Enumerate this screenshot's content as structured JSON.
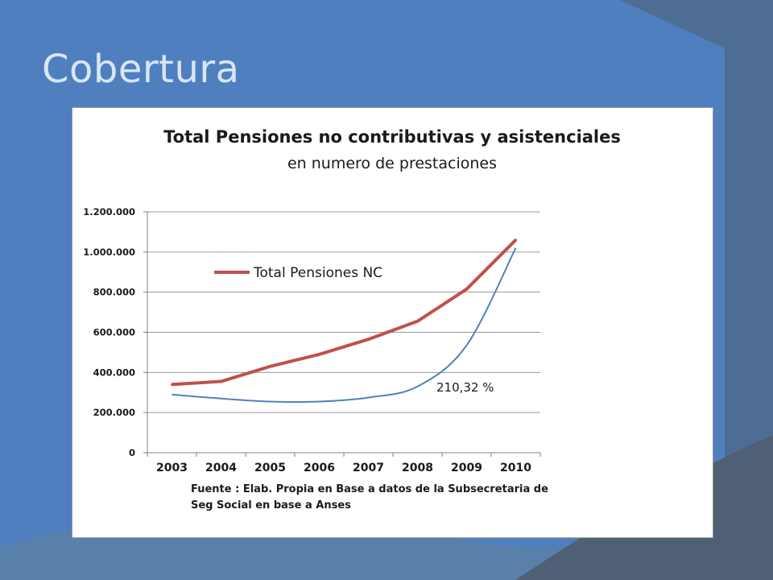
{
  "slide": {
    "title": "Cobertura"
  },
  "colors": {
    "background": "#4f7fbf",
    "background_dark": "#4f5f74",
    "title_text": "#d9e6f5",
    "series_total": "#c0504d",
    "series_percent": "#4f81bd"
  },
  "chart_data": {
    "type": "line",
    "title": "Total Pensiones no contributivas y asistenciales",
    "subtitle": "en numero de prestaciones",
    "xlabel": "",
    "ylabel": "",
    "categories": [
      "2003",
      "2004",
      "2005",
      "2006",
      "2007",
      "2008",
      "2009",
      "2010"
    ],
    "y_ticks": [
      "0",
      "200.000",
      "400.000",
      "600.000",
      "800.000",
      "1.000.000",
      "1.200.000"
    ],
    "ylim": [
      0,
      1200000
    ],
    "grid": true,
    "legend_position": "top-left",
    "series": [
      {
        "name": "Total Pensiones NC",
        "values": [
          340000,
          355000,
          430000,
          490000,
          565000,
          655000,
          815000,
          1060000
        ]
      },
      {
        "name": "",
        "values": [
          290000,
          270000,
          255000,
          255000,
          275000,
          330000,
          535000,
          1020000
        ]
      }
    ],
    "annotation": "210,32 %",
    "source_note": [
      "Fuente : Elab. Propia en Base a datos de la Subsecretaria de",
      "Seg Social en base a Anses"
    ]
  }
}
